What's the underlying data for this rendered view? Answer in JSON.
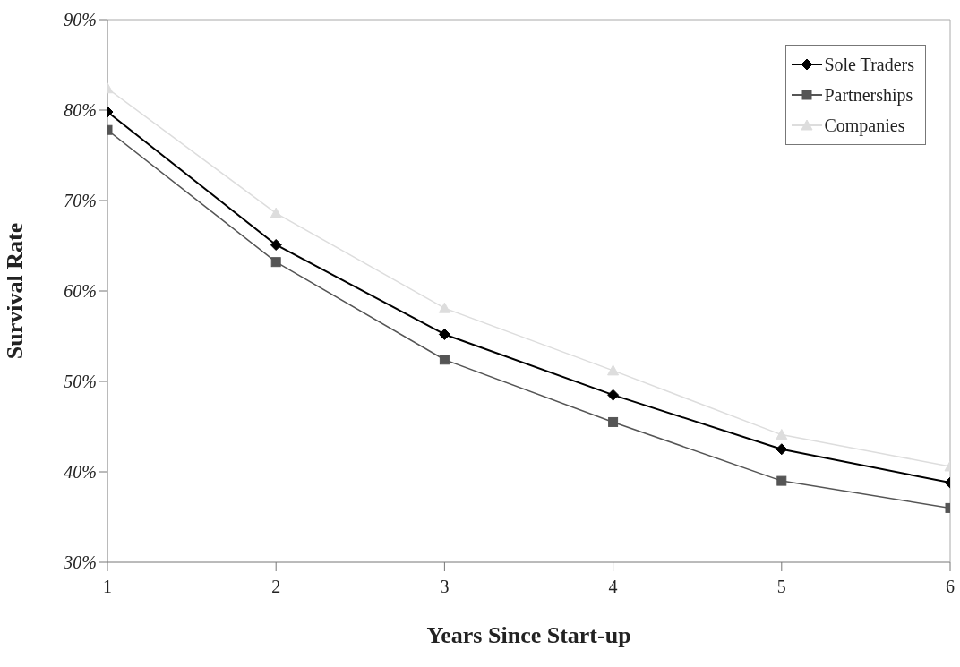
{
  "chart_data": {
    "type": "line",
    "xlabel": "Years Since Start-up",
    "ylabel": "Survival Rate",
    "x": [
      1,
      2,
      3,
      4,
      5,
      6
    ],
    "xlim": [
      1,
      6
    ],
    "xticks": [
      1,
      2,
      3,
      4,
      5,
      6
    ],
    "ylim": [
      30,
      90
    ],
    "yticks": [
      {
        "value": 30,
        "label": "30%"
      },
      {
        "value": 40,
        "label": "40%"
      },
      {
        "value": 50,
        "label": "50%"
      },
      {
        "value": 60,
        "label": "60%"
      },
      {
        "value": 70,
        "label": "70%"
      },
      {
        "value": 80,
        "label": "80%"
      },
      {
        "value": 90,
        "label": "90%"
      }
    ],
    "grid": false,
    "legend": "top right",
    "line_style": "solid",
    "series": [
      {
        "name": "Sole Traders",
        "color": "#000000",
        "marker": "diamond",
        "values": [
          79.8,
          65.1,
          55.2,
          48.5,
          42.5,
          38.8
        ]
      },
      {
        "name": "Partnerships",
        "color": "#555555",
        "marker": "square",
        "values": [
          77.8,
          63.2,
          52.4,
          45.5,
          39.0,
          36.0
        ]
      },
      {
        "name": "Companies",
        "color": "#dddddd",
        "marker": "triangle",
        "values": [
          82.4,
          68.6,
          58.1,
          51.2,
          44.1,
          40.6
        ]
      }
    ]
  }
}
